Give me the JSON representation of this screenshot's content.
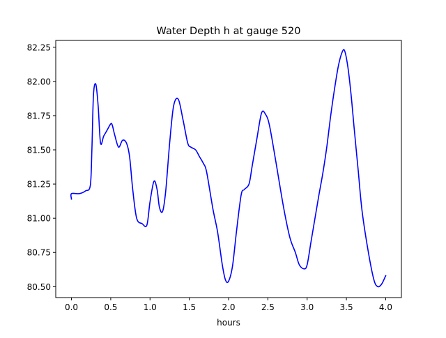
{
  "chart_data": {
    "type": "line",
    "title": "Water Depth h at gauge 520",
    "xlabel": "hours",
    "ylabel": "",
    "xlim": [
      -0.2,
      4.2
    ],
    "ylim": [
      80.42,
      82.3
    ],
    "grid": false,
    "line_color": "#0000ff",
    "xticks": [
      0.0,
      0.5,
      1.0,
      1.5,
      2.0,
      2.5,
      3.0,
      3.5,
      4.0
    ],
    "xtick_labels": [
      "0.0",
      "0.5",
      "1.0",
      "1.5",
      "2.0",
      "2.5",
      "3.0",
      "3.5",
      "4.0"
    ],
    "yticks": [
      80.5,
      80.75,
      81.0,
      81.25,
      81.5,
      81.75,
      82.0,
      82.25
    ],
    "ytick_labels": [
      "80.50",
      "80.75",
      "81.00",
      "81.25",
      "81.50",
      "81.75",
      "82.00",
      "82.25"
    ],
    "series": [
      {
        "name": "",
        "x": [
          0.0,
          0.0,
          0.1,
          0.18,
          0.24,
          0.26,
          0.28,
          0.31,
          0.34,
          0.37,
          0.41,
          0.45,
          0.5,
          0.52,
          0.55,
          0.6,
          0.65,
          0.7,
          0.74,
          0.78,
          0.83,
          0.9,
          0.96,
          1.0,
          1.05,
          1.09,
          1.12,
          1.16,
          1.2,
          1.25,
          1.3,
          1.36,
          1.42,
          1.48,
          1.52,
          1.58,
          1.63,
          1.68,
          1.72,
          1.8,
          1.86,
          1.92,
          1.96,
          2.0,
          2.05,
          2.1,
          2.16,
          2.2,
          2.26,
          2.3,
          2.36,
          2.42,
          2.47,
          2.52,
          2.6,
          2.7,
          2.78,
          2.85,
          2.9,
          2.96,
          3.0,
          3.05,
          3.1,
          3.15,
          3.2,
          3.25,
          3.3,
          3.35,
          3.4,
          3.45,
          3.48,
          3.52,
          3.56,
          3.6,
          3.65,
          3.7,
          3.78,
          3.85,
          3.9,
          3.95,
          4.0
        ],
        "y": [
          81.14,
          81.18,
          81.18,
          81.2,
          81.24,
          81.5,
          81.9,
          81.98,
          81.82,
          81.55,
          81.6,
          81.64,
          81.69,
          81.68,
          81.61,
          81.52,
          81.57,
          81.55,
          81.45,
          81.21,
          81.0,
          80.96,
          80.95,
          81.12,
          81.27,
          81.21,
          81.08,
          81.05,
          81.2,
          81.55,
          81.82,
          81.87,
          81.72,
          81.55,
          81.52,
          81.5,
          81.45,
          81.4,
          81.34,
          81.07,
          80.9,
          80.66,
          80.55,
          80.54,
          80.65,
          80.9,
          81.17,
          81.21,
          81.25,
          81.38,
          81.58,
          81.77,
          81.76,
          81.68,
          81.42,
          81.08,
          80.86,
          80.75,
          80.66,
          80.63,
          80.66,
          80.83,
          81.0,
          81.17,
          81.33,
          81.52,
          81.75,
          81.95,
          82.12,
          82.22,
          82.22,
          82.1,
          81.9,
          81.65,
          81.35,
          81.05,
          80.75,
          80.55,
          80.5,
          80.52,
          80.58
        ]
      }
    ]
  }
}
